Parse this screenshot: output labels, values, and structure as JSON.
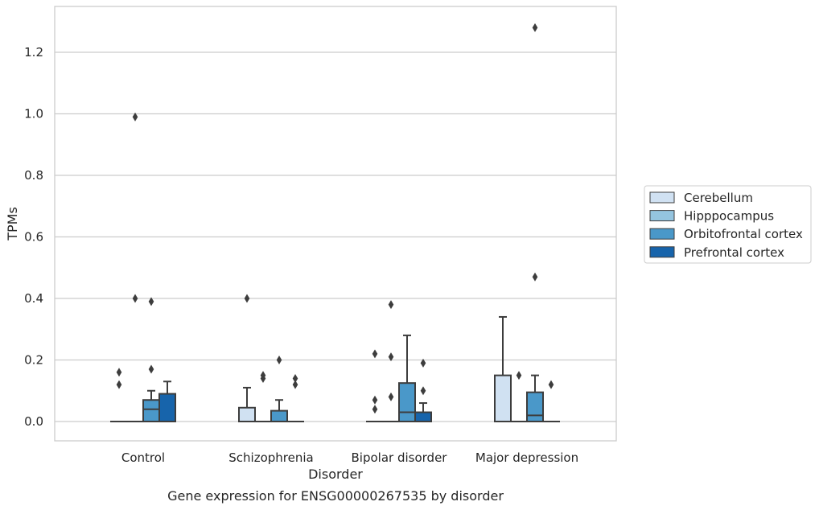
{
  "caption": "Gene expression for ENSG00000267535 by disorder",
  "chart_data": {
    "type": "box",
    "xlabel": "Disorder",
    "ylabel": "TPMs",
    "ylim": [
      -0.065,
      1.35
    ],
    "yticks": [
      "0.0",
      "0.2",
      "0.4",
      "0.6",
      "0.8",
      "1.0",
      "1.2"
    ],
    "grid": "horizontal",
    "legend_position": "right",
    "categories": [
      "Control",
      "Schizophrenia",
      "Bipolar disorder",
      "Major depression"
    ],
    "series": [
      {
        "name": "Cerebellum",
        "color": "#d0e1f2",
        "boxes": [
          {
            "q1": 0,
            "median": 0,
            "q3": 0,
            "whislo": 0,
            "whishi": 0,
            "fliers": [
              0.12,
              0.16
            ]
          },
          {
            "q1": 0,
            "median": 0,
            "q3": 0.045,
            "whislo": 0,
            "whishi": 0.11,
            "fliers": [
              0.4
            ]
          },
          {
            "q1": 0,
            "median": 0,
            "q3": 0,
            "whislo": 0,
            "whishi": 0,
            "fliers": [
              0.04,
              0.07,
              0.22
            ]
          },
          {
            "q1": 0,
            "median": 0,
            "q3": 0.15,
            "whislo": 0,
            "whishi": 0.34,
            "fliers": []
          }
        ]
      },
      {
        "name": "Hipppocampus",
        "color": "#94c4df",
        "boxes": [
          {
            "q1": 0,
            "median": 0,
            "q3": 0,
            "whislo": 0,
            "whishi": 0,
            "fliers": [
              0.4,
              0.99
            ]
          },
          {
            "q1": 0,
            "median": 0,
            "q3": 0,
            "whislo": 0,
            "whishi": 0,
            "fliers": [
              0.14,
              0.15
            ]
          },
          {
            "q1": 0,
            "median": 0,
            "q3": 0,
            "whislo": 0,
            "whishi": 0,
            "fliers": [
              0.08,
              0.21,
              0.38
            ]
          },
          {
            "q1": 0,
            "median": 0,
            "q3": 0,
            "whislo": 0,
            "whishi": 0,
            "fliers": [
              0.15
            ]
          }
        ]
      },
      {
        "name": "Orbitofrontal cortex",
        "color": "#4a98c9",
        "boxes": [
          {
            "q1": 0,
            "median": 0.04,
            "q3": 0.07,
            "whislo": 0,
            "whishi": 0.1,
            "fliers": [
              0.17,
              0.39
            ]
          },
          {
            "q1": 0,
            "median": 0,
            "q3": 0.035,
            "whislo": 0,
            "whishi": 0.07,
            "fliers": [
              0.2
            ]
          },
          {
            "q1": 0,
            "median": 0.03,
            "q3": 0.125,
            "whislo": 0,
            "whishi": 0.28,
            "fliers": []
          },
          {
            "q1": 0,
            "median": 0.02,
            "q3": 0.095,
            "whislo": 0,
            "whishi": 0.15,
            "fliers": [
              0.47,
              1.28
            ]
          }
        ]
      },
      {
        "name": "Prefrontal cortex",
        "color": "#1764ab",
        "boxes": [
          {
            "q1": 0,
            "median": 0,
            "q3": 0.09,
            "whislo": 0,
            "whishi": 0.13,
            "fliers": []
          },
          {
            "q1": 0,
            "median": 0,
            "q3": 0,
            "whislo": 0,
            "whishi": 0,
            "fliers": [
              0.12,
              0.14
            ]
          },
          {
            "q1": 0,
            "median": 0,
            "q3": 0.03,
            "whislo": 0,
            "whishi": 0.06,
            "fliers": [
              0.1,
              0.19
            ]
          },
          {
            "q1": 0,
            "median": 0,
            "q3": 0,
            "whislo": 0,
            "whishi": 0,
            "fliers": [
              0.12
            ]
          }
        ]
      }
    ]
  }
}
